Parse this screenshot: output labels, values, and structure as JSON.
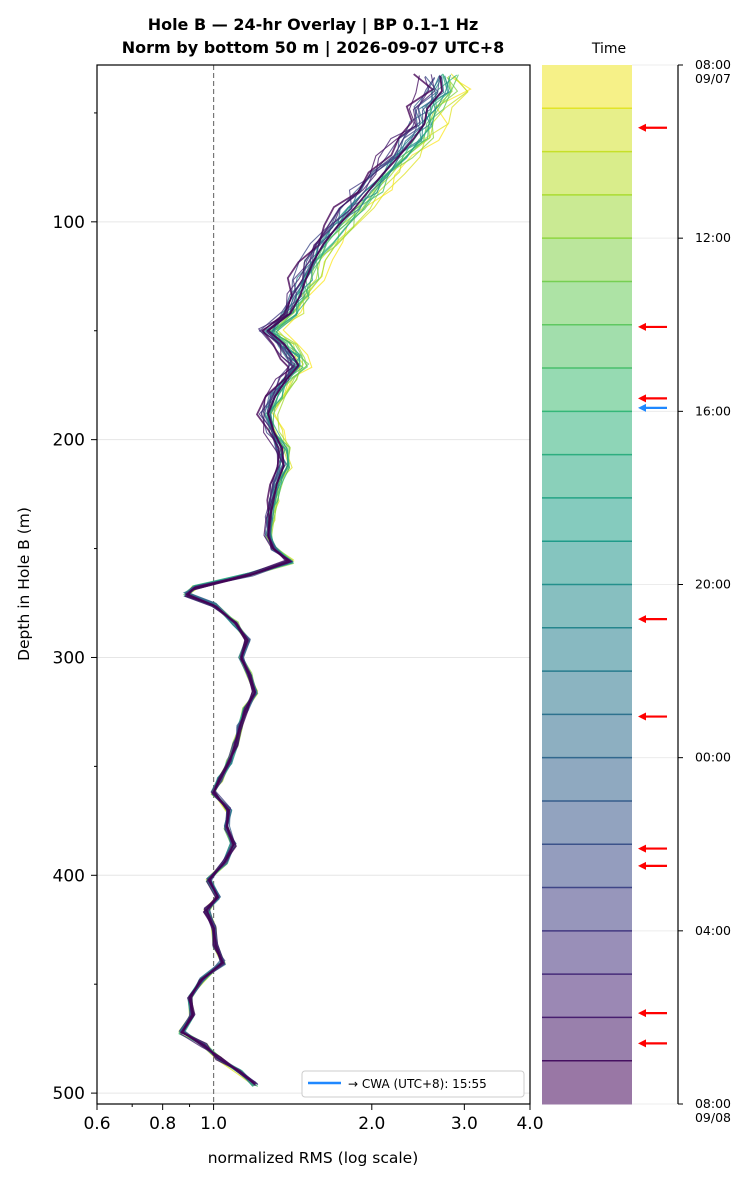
{
  "title_line1": "Hole B — 24-hr Overlay  |  BP 0.1–1 Hz",
  "title_line2": "Norm by bottom 50 m  |  2026-09-07 UTC+8",
  "colorbar_title": "Time",
  "chart_data": {
    "type": "line",
    "xlabel": "normalized RMS  (log scale)",
    "ylabel": "Depth in Hole B (m)",
    "xscale": "log",
    "xlim": [
      0.6,
      4.0
    ],
    "ylim": [
      505,
      28
    ],
    "x_ticks": [
      0.6,
      0.8,
      1.0,
      2.0,
      3.0,
      4.0
    ],
    "x_tick_labels": [
      "0.6",
      "0.8",
      "1.0",
      "2.0",
      "3.0",
      "4.0"
    ],
    "y_ticks": [
      100,
      200,
      300,
      400,
      500
    ],
    "y_tick_labels": [
      "100",
      "200",
      "300",
      "400",
      "500"
    ],
    "y_minor_ticks": [
      50,
      150,
      250,
      350,
      450
    ],
    "grid": "horizontal",
    "reference_line": {
      "x": 1.0,
      "style": "dashed gray"
    },
    "series_count": 24,
    "colormap": "viridis (yellow = 08:00 09/07 → purple = 08:00 09/08)",
    "profile": [
      {
        "depth": 33,
        "rms": 2.7
      },
      {
        "depth": 40,
        "rms": 2.72
      },
      {
        "depth": 48,
        "rms": 2.55
      },
      {
        "depth": 55,
        "rms": 2.52
      },
      {
        "depth": 62,
        "rms": 2.4
      },
      {
        "depth": 70,
        "rms": 2.25
      },
      {
        "depth": 78,
        "rms": 2.1
      },
      {
        "depth": 86,
        "rms": 1.97
      },
      {
        "depth": 94,
        "rms": 1.85
      },
      {
        "depth": 102,
        "rms": 1.72
      },
      {
        "depth": 110,
        "rms": 1.62
      },
      {
        "depth": 118,
        "rms": 1.55
      },
      {
        "depth": 126,
        "rms": 1.5
      },
      {
        "depth": 134,
        "rms": 1.46
      },
      {
        "depth": 142,
        "rms": 1.4
      },
      {
        "depth": 150,
        "rms": 1.27
      },
      {
        "depth": 156,
        "rms": 1.36
      },
      {
        "depth": 162,
        "rms": 1.42
      },
      {
        "depth": 166,
        "rms": 1.45
      },
      {
        "depth": 172,
        "rms": 1.38
      },
      {
        "depth": 180,
        "rms": 1.31
      },
      {
        "depth": 188,
        "rms": 1.27
      },
      {
        "depth": 196,
        "rms": 1.3
      },
      {
        "depth": 204,
        "rms": 1.35
      },
      {
        "depth": 212,
        "rms": 1.36
      },
      {
        "depth": 220,
        "rms": 1.32
      },
      {
        "depth": 228,
        "rms": 1.3
      },
      {
        "depth": 236,
        "rms": 1.28
      },
      {
        "depth": 244,
        "rms": 1.27
      },
      {
        "depth": 250,
        "rms": 1.3
      },
      {
        "depth": 256,
        "rms": 1.4
      },
      {
        "depth": 262,
        "rms": 1.18
      },
      {
        "depth": 268,
        "rms": 0.92
      },
      {
        "depth": 271,
        "rms": 0.89
      },
      {
        "depth": 276,
        "rms": 1.0
      },
      {
        "depth": 284,
        "rms": 1.1
      },
      {
        "depth": 292,
        "rms": 1.16
      },
      {
        "depth": 300,
        "rms": 1.13
      },
      {
        "depth": 308,
        "rms": 1.17
      },
      {
        "depth": 316,
        "rms": 1.2
      },
      {
        "depth": 324,
        "rms": 1.15
      },
      {
        "depth": 332,
        "rms": 1.12
      },
      {
        "depth": 340,
        "rms": 1.1
      },
      {
        "depth": 348,
        "rms": 1.07
      },
      {
        "depth": 356,
        "rms": 1.03
      },
      {
        "depth": 362,
        "rms": 1.0
      },
      {
        "depth": 370,
        "rms": 1.07
      },
      {
        "depth": 378,
        "rms": 1.06
      },
      {
        "depth": 386,
        "rms": 1.09
      },
      {
        "depth": 394,
        "rms": 1.05
      },
      {
        "depth": 402,
        "rms": 0.98
      },
      {
        "depth": 410,
        "rms": 1.02
      },
      {
        "depth": 416,
        "rms": 0.97
      },
      {
        "depth": 424,
        "rms": 1.0
      },
      {
        "depth": 432,
        "rms": 1.01
      },
      {
        "depth": 440,
        "rms": 1.04
      },
      {
        "depth": 448,
        "rms": 0.95
      },
      {
        "depth": 456,
        "rms": 0.9
      },
      {
        "depth": 464,
        "rms": 0.91
      },
      {
        "depth": 472,
        "rms": 0.87
      },
      {
        "depth": 478,
        "rms": 0.96
      },
      {
        "depth": 484,
        "rms": 1.02
      },
      {
        "depth": 490,
        "rms": 1.12
      },
      {
        "depth": 496,
        "rms": 1.2
      }
    ],
    "legend": {
      "label": "→ CWA (UTC+8): 15:55",
      "color": "#1f88ff",
      "location": "lower right"
    },
    "colorbar": {
      "label": "Time",
      "start_hour": 8,
      "span_hours": 24,
      "segments": 24,
      "tick_hours": [
        0,
        4,
        8,
        12,
        16,
        20,
        24
      ],
      "tick_labels": [
        [
          "08:00",
          "09/07"
        ],
        [
          "12:00"
        ],
        [
          "16:00"
        ],
        [
          "20:00"
        ],
        [
          "00:00"
        ],
        [
          "04:00"
        ],
        [
          "08:00",
          "09/08"
        ]
      ],
      "event_marks_hours": [
        1.45,
        6.05,
        7.7,
        12.8,
        15.05,
        18.1,
        18.5,
        21.9,
        22.6
      ],
      "cwa_mark_hours": 7.92,
      "event_color": "#ff0000",
      "cwa_color": "#1f88ff"
    }
  }
}
